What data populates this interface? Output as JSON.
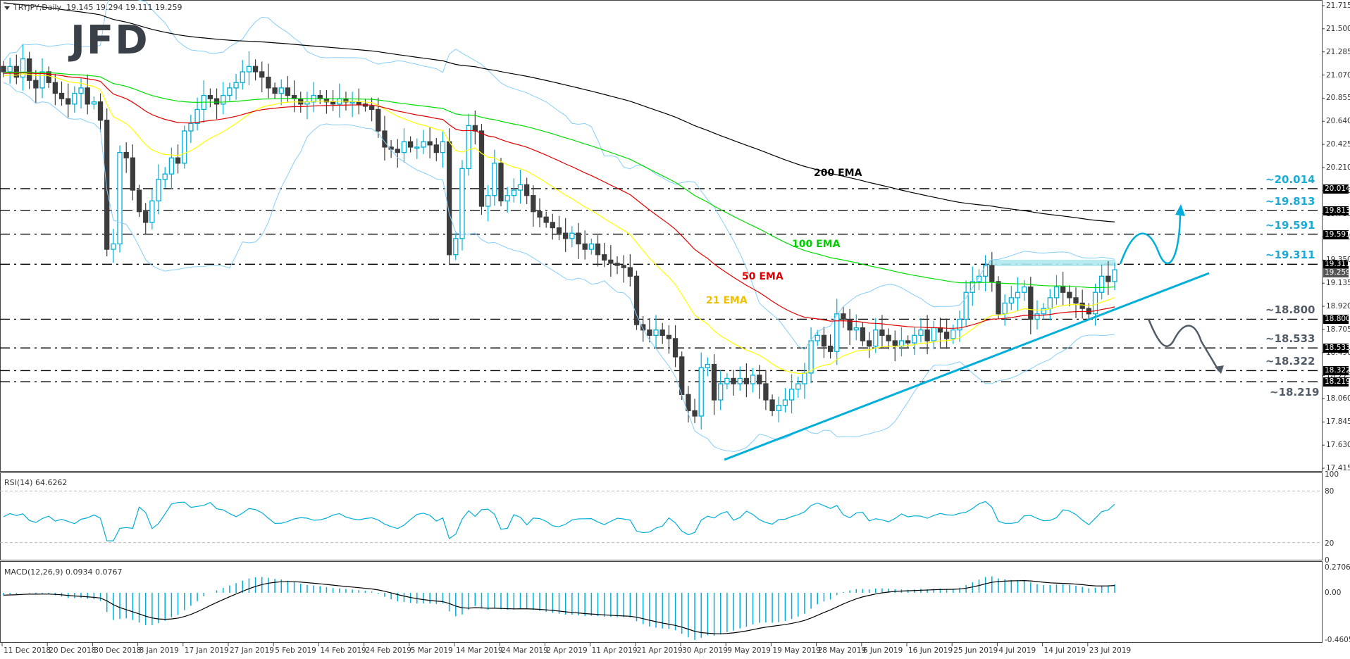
{
  "header": {
    "symbol": "TRYJPY,Daily",
    "ohlc": "19.145 19.294 19.111 19.259",
    "logo": "JFD"
  },
  "colors": {
    "bull": "#00aeda",
    "bear": "#3c3c3c",
    "ema21": "#ffff00",
    "ema50": "#e00000",
    "ema100": "#00dd00",
    "ema200": "#000000",
    "bollinger": "#87cefa",
    "trendline": "#00aeda",
    "resistance_box": "#aeeaf0",
    "up_arrow": "#00aeda",
    "down_arrow": "#525c68",
    "level_bull_text": "#1aaad6",
    "level_bear_text": "#525c68"
  },
  "price_axis": {
    "ticks": [
      "21.715",
      "21.500",
      "21.285",
      "21.070",
      "20.855",
      "20.640",
      "20.425",
      "20.210",
      "19.995",
      "19.780",
      "19.565",
      "19.350",
      "19.135",
      "18.920",
      "18.705",
      "18.490",
      "18.275",
      "18.060",
      "17.845",
      "17.630",
      "17.415"
    ],
    "tags": [
      {
        "value": "20.014",
        "kind": "level"
      },
      {
        "value": "19.813",
        "kind": "level"
      },
      {
        "value": "19.591",
        "kind": "level"
      },
      {
        "value": "19.311",
        "kind": "level"
      },
      {
        "value": "19.259",
        "kind": "current"
      },
      {
        "value": "18.800",
        "kind": "level"
      },
      {
        "value": "18.533",
        "kind": "level"
      },
      {
        "value": "18.322",
        "kind": "level"
      },
      {
        "value": "18.219",
        "kind": "level"
      }
    ]
  },
  "levels": [
    {
      "label": "~20.014",
      "value": 20.014,
      "side": "bull"
    },
    {
      "label": "~19.813",
      "value": 19.813,
      "side": "bull"
    },
    {
      "label": "~19.591",
      "value": 19.591,
      "side": "bull"
    },
    {
      "label": "~19.311",
      "value": 19.311,
      "side": "bull"
    },
    {
      "label": "~18.800",
      "value": 18.8,
      "side": "bear"
    },
    {
      "label": "~18.533",
      "value": 18.533,
      "side": "bear"
    },
    {
      "label": "~18.322",
      "value": 18.322,
      "side": "bear"
    },
    {
      "label": "~18.219",
      "value": 18.219,
      "side": "bear"
    }
  ],
  "ema_labels": {
    "ema200": "200 EMA",
    "ema100": "100 EMA",
    "ema50": "50 EMA",
    "ema21": "21 EMA"
  },
  "rsi": {
    "label": "RSI(14) 64.6262",
    "axis": [
      "100",
      "80",
      "20",
      "0"
    ]
  },
  "macd": {
    "label": "MACD(12,26,9) 0.0934 0.0767",
    "axis": [
      "0.2706",
      "0.00",
      "-0.4605"
    ]
  },
  "date_axis": [
    "11 Dec 2018",
    "20 Dec 2018",
    "30 Dec 2018",
    "8 Jan 2019",
    "17 Jan 2019",
    "27 Jan 2019",
    "5 Feb 2019",
    "14 Feb 2019",
    "24 Feb 2019",
    "5 Mar 2019",
    "14 Mar 2019",
    "24 Mar 2019",
    "2 Apr 2019",
    "11 Apr 2019",
    "21 Apr 2019",
    "30 Apr 2019",
    "9 May 2019",
    "19 May 2019",
    "28 May 2019",
    "6 Jun 2019",
    "16 Jun 2019",
    "25 Jun 2019",
    "4 Jul 2019",
    "14 Jul 2019",
    "23 Jul 2019"
  ],
  "chart_data": {
    "type": "candlestick",
    "title": "TRYJPY, Daily",
    "ylim": [
      17.415,
      21.715
    ],
    "indicators": [
      "EMA 21",
      "EMA 50",
      "EMA 100",
      "EMA 200",
      "Bollinger Bands",
      "RSI(14)",
      "MACD(12,26,9)"
    ],
    "last_ohlc": {
      "open": 19.145,
      "high": 19.294,
      "low": 19.111,
      "close": 19.259
    },
    "closes": [
      21.1,
      21.15,
      21.05,
      21.22,
      21.02,
      20.95,
      21.1,
      21.0,
      20.9,
      20.85,
      20.8,
      20.9,
      20.95,
      20.8,
      20.82,
      20.65,
      19.45,
      19.5,
      20.35,
      20.3,
      20.0,
      19.8,
      19.7,
      19.9,
      20.1,
      20.15,
      20.3,
      20.25,
      20.55,
      20.62,
      20.75,
      20.88,
      20.85,
      20.8,
      20.88,
      20.95,
      21.0,
      21.1,
      21.15,
      21.1,
      21.05,
      20.95,
      20.9,
      20.95,
      20.88,
      20.85,
      20.8,
      20.82,
      20.88,
      20.85,
      20.82,
      20.8,
      20.85,
      20.82,
      20.82,
      20.8,
      20.78,
      20.75,
      20.55,
      20.4,
      20.38,
      20.35,
      20.45,
      20.4,
      20.4,
      20.45,
      20.42,
      20.35,
      20.45,
      19.4,
      19.55,
      20.2,
      20.6,
      20.55,
      19.85,
      19.95,
      20.25,
      19.9,
      19.95,
      20.0,
      20.05,
      19.95,
      19.8,
      19.75,
      19.7,
      19.65,
      19.6,
      19.55,
      19.6,
      19.5,
      19.45,
      19.5,
      19.4,
      19.35,
      19.32,
      19.3,
      19.28,
      19.2,
      18.75,
      18.7,
      18.65,
      18.7,
      18.65,
      18.62,
      18.45,
      18.1,
      17.95,
      17.9,
      18.35,
      18.38,
      18.05,
      18.2,
      18.25,
      18.2,
      18.25,
      18.2,
      18.28,
      18.2,
      18.05,
      17.95,
      18.0,
      18.05,
      18.15,
      18.2,
      18.3,
      18.6,
      18.65,
      18.55,
      18.5,
      18.85,
      18.8,
      18.7,
      18.72,
      18.6,
      18.55,
      18.7,
      18.65,
      18.6,
      18.55,
      18.6,
      18.58,
      18.65,
      18.7,
      18.6,
      18.72,
      18.68,
      18.62,
      18.7,
      18.8,
      19.05,
      19.15,
      19.2,
      19.3,
      19.15,
      18.85,
      18.95,
      19.0,
      19.05,
      19.1,
      18.8,
      18.85,
      18.9,
      19.0,
      19.1,
      19.05,
      19.0,
      18.95,
      18.9,
      18.85,
      19.05,
      19.2,
      19.15,
      19.259
    ],
    "levels": [
      20.014,
      19.813,
      19.591,
      19.311,
      18.8,
      18.533,
      18.322,
      18.219
    ],
    "rsi_last": 64.6262,
    "macd_last": {
      "macd": 0.0934,
      "signal": 0.0767
    },
    "rsi_range": [
      0,
      100
    ],
    "macd_range": [
      -0.4605,
      0.2706
    ]
  }
}
